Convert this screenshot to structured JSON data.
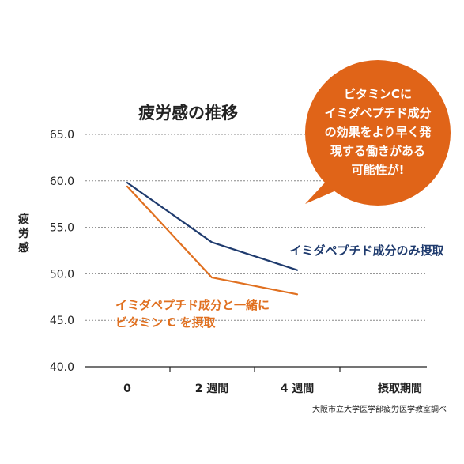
{
  "chart_data": {
    "type": "line",
    "title": "疲労感の推移",
    "ylabel": "疲労感",
    "xlabel": "摂取期間",
    "ylim": [
      40.0,
      65.0
    ],
    "yticks": [
      "40.0",
      "45.0",
      "50.0",
      "55.0",
      "60.0",
      "65.0"
    ],
    "categories": [
      "0",
      "2 週間",
      "4 週間"
    ],
    "grid": "horizontal dotted",
    "series": [
      {
        "name": "イミダペプチド成分のみ摂取",
        "color": "#1f3b6e",
        "values": [
          59.8,
          53.4,
          50.4
        ]
      },
      {
        "name": "イミダペプチド成分と一緒にビタミン C を摂取",
        "name_lines": [
          "イミダペプチド成分と一緒に",
          "ビタミン C を摂取"
        ],
        "color": "#e07020",
        "values": [
          59.4,
          49.6,
          47.8
        ]
      }
    ],
    "callout": {
      "lines": [
        "ビタミンCに",
        "イミダペプチド成分",
        "の効果をより早く発",
        "現する働きがある",
        "可能性が!"
      ],
      "color": "#e06418"
    },
    "source": "大阪市立大学医学部疲労医学教室調べ"
  }
}
